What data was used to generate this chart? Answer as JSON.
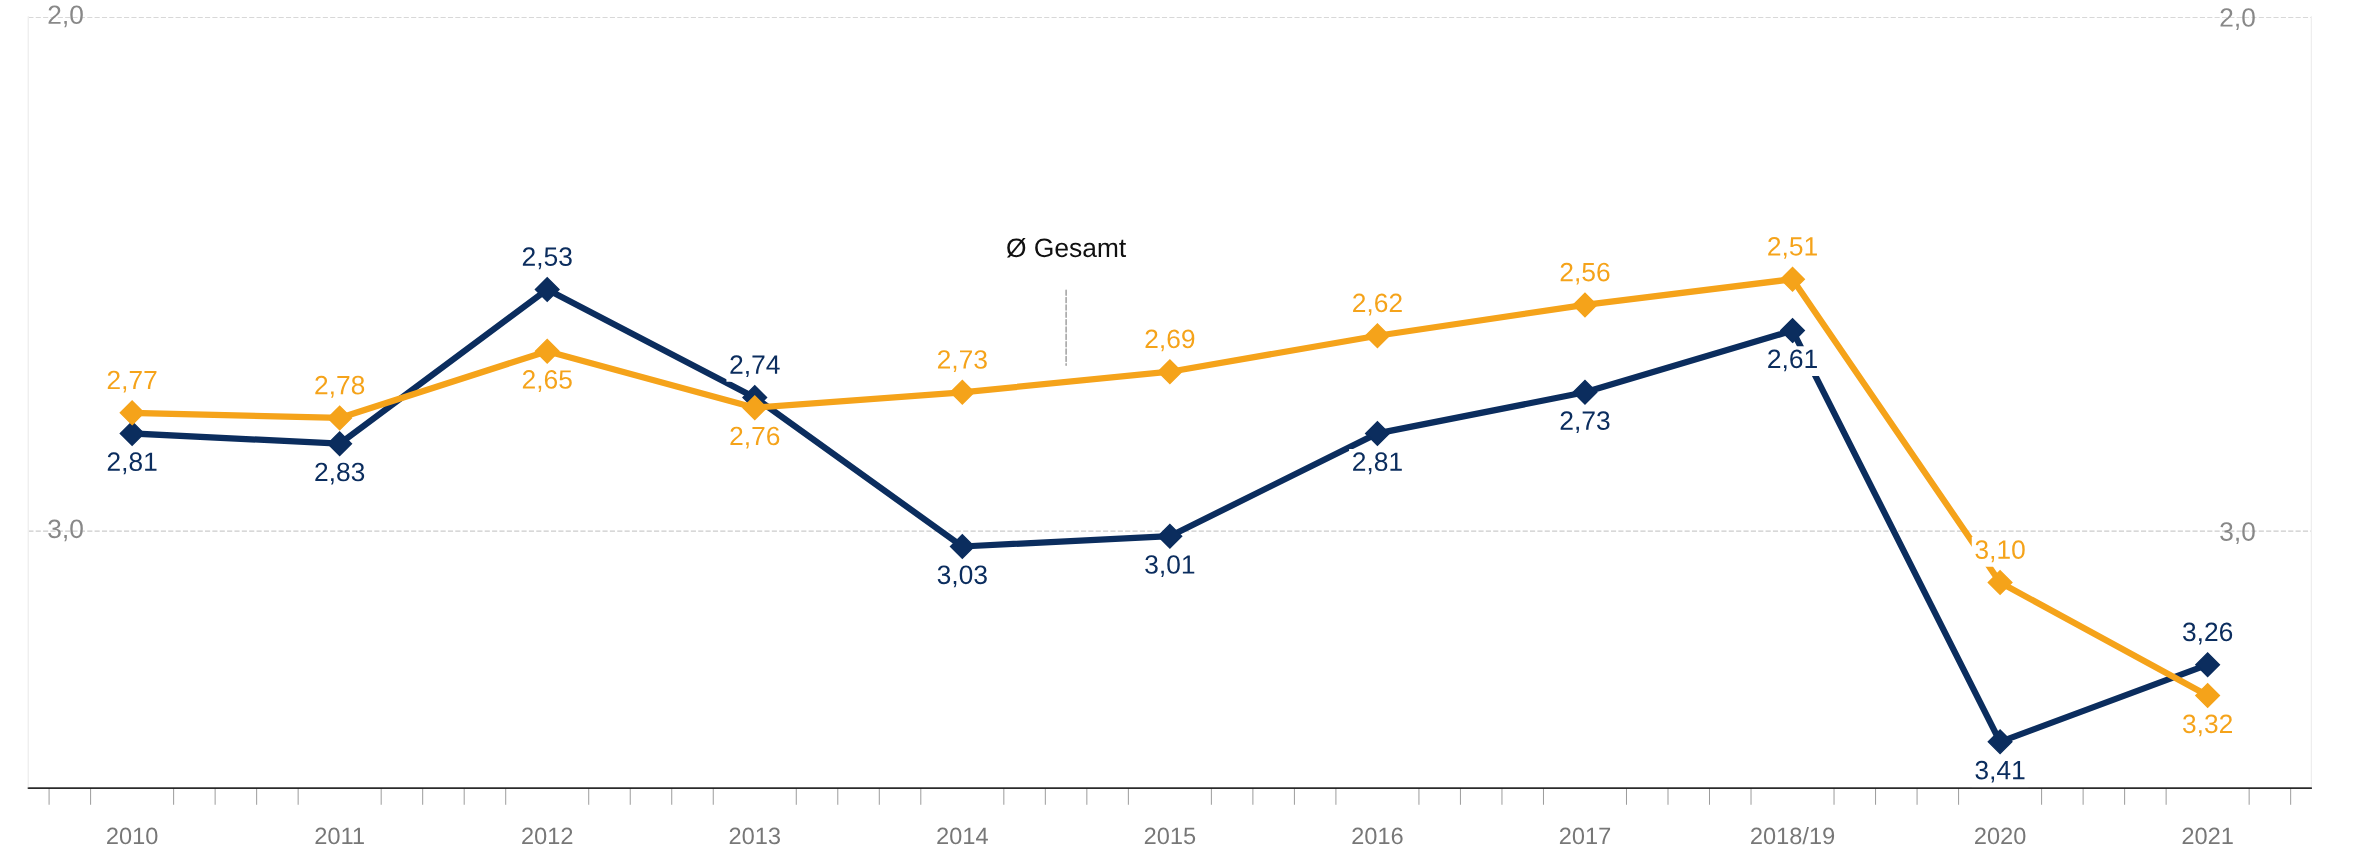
{
  "chart_data": {
    "type": "line",
    "categories": [
      "2010",
      "2011",
      "2012",
      "2013",
      "2014",
      "2015",
      "2016",
      "2017",
      "2018/19",
      "2020",
      "2021"
    ],
    "series": [
      {
        "color": "#0b2d5e",
        "values": [
          2.81,
          2.83,
          2.53,
          2.74,
          3.03,
          3.01,
          2.81,
          2.73,
          2.61,
          3.41,
          3.26
        ],
        "value_labels": [
          "2,81",
          "2,83",
          "2,53",
          "2,74",
          "3,03",
          "3,01",
          "2,81",
          "2,73",
          "2,61",
          "3,41",
          "3,26"
        ]
      },
      {
        "name": "Ø Gesamt",
        "color": "#f5a31a",
        "values": [
          2.77,
          2.78,
          2.65,
          2.76,
          2.73,
          2.69,
          2.62,
          2.56,
          2.51,
          3.1,
          3.32
        ],
        "value_labels": [
          "2,77",
          "2,78",
          "2,65",
          "2,76",
          "2,73",
          "2,69",
          "2,62",
          "2,56",
          "2,51",
          "3,10",
          "3,32"
        ]
      }
    ],
    "ylim": [
      3.5,
      2.0
    ],
    "yticks": [
      {
        "value": 2.0,
        "label": "2,0"
      },
      {
        "value": 3.0,
        "label": "3,0"
      }
    ],
    "y2lim": [
      3.5,
      2.0
    ],
    "y2ticks": [
      {
        "value": 2.0,
        "label": "2,0"
      },
      {
        "value": 3.0,
        "label": "3,0"
      }
    ],
    "grid": "y",
    "marker": "diamond",
    "line_style": "solid",
    "legend": false
  }
}
